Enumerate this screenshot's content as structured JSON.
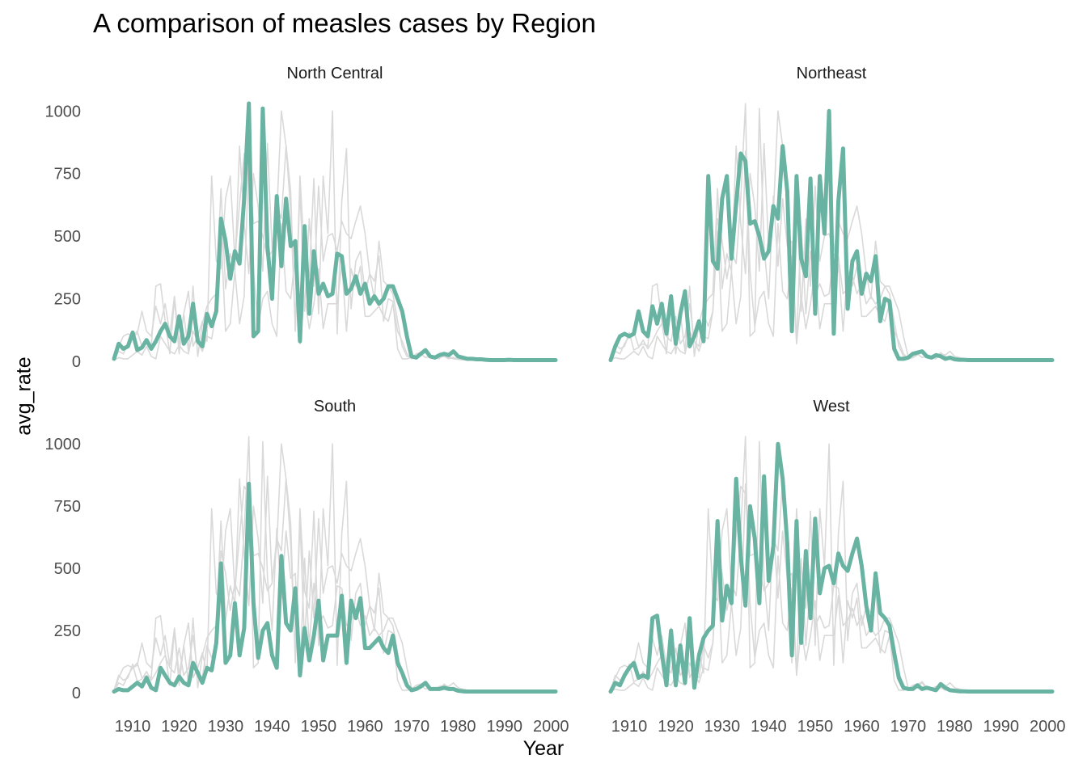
{
  "chart_data": {
    "type": "line",
    "title": "A comparison of measles cases by Region",
    "xlabel": "Year",
    "ylabel": "avg_rate",
    "xlim": [
      1906,
      2001
    ],
    "ylim": [
      0,
      1030
    ],
    "x_ticks": [
      1910,
      1920,
      1930,
      1940,
      1950,
      1960,
      1970,
      1980,
      1990,
      2000
    ],
    "y_ticks": [
      0,
      250,
      500,
      750,
      1000
    ],
    "grid": false,
    "legend": "none",
    "colors": {
      "highlight": "#69b3a2",
      "background": "#d9d9d9"
    },
    "x": [
      1906,
      1907,
      1908,
      1909,
      1910,
      1911,
      1912,
      1913,
      1914,
      1915,
      1916,
      1917,
      1918,
      1919,
      1920,
      1921,
      1922,
      1923,
      1924,
      1925,
      1926,
      1927,
      1928,
      1929,
      1930,
      1931,
      1932,
      1933,
      1934,
      1935,
      1936,
      1937,
      1938,
      1939,
      1940,
      1941,
      1942,
      1943,
      1944,
      1945,
      1946,
      1947,
      1948,
      1949,
      1950,
      1951,
      1952,
      1953,
      1954,
      1955,
      1956,
      1957,
      1958,
      1959,
      1960,
      1961,
      1962,
      1963,
      1964,
      1965,
      1966,
      1967,
      1968,
      1969,
      1970,
      1971,
      1972,
      1973,
      1974,
      1975,
      1976,
      1977,
      1978,
      1979,
      1980,
      1981,
      1982,
      1983,
      1984,
      1985,
      1986,
      1987,
      1988,
      1989,
      1990,
      1991,
      1992,
      1993,
      1994,
      1995,
      1996,
      1997,
      1998,
      1999,
      2000,
      2001
    ],
    "facets": [
      {
        "name": "North Central",
        "values": [
          10,
          70,
          50,
          60,
          115,
          45,
          55,
          85,
          50,
          80,
          120,
          150,
          100,
          80,
          180,
          70,
          100,
          230,
          80,
          60,
          190,
          140,
          200,
          570,
          480,
          330,
          440,
          390,
          650,
          1030,
          100,
          120,
          1010,
          460,
          250,
          660,
          380,
          650,
          460,
          480,
          80,
          540,
          190,
          440,
          270,
          310,
          260,
          270,
          430,
          420,
          270,
          290,
          340,
          270,
          310,
          230,
          260,
          230,
          250,
          300,
          300,
          250,
          200,
          100,
          20,
          15,
          30,
          45,
          20,
          15,
          25,
          30,
          25,
          40,
          20,
          15,
          10,
          10,
          8,
          8,
          6,
          5,
          5,
          5,
          5,
          6,
          5,
          5,
          5,
          5,
          5,
          5,
          5,
          5,
          5,
          5
        ]
      },
      {
        "name": "Northeast",
        "values": [
          5,
          60,
          100,
          110,
          100,
          110,
          200,
          120,
          100,
          220,
          150,
          230,
          110,
          260,
          70,
          190,
          280,
          60,
          100,
          160,
          80,
          740,
          400,
          370,
          650,
          740,
          410,
          630,
          830,
          800,
          550,
          560,
          500,
          410,
          440,
          620,
          570,
          860,
          680,
          120,
          740,
          410,
          340,
          730,
          190,
          740,
          510,
          1000,
          110,
          640,
          850,
          210,
          400,
          440,
          270,
          350,
          320,
          420,
          160,
          250,
          240,
          50,
          10,
          10,
          15,
          30,
          35,
          40,
          20,
          15,
          25,
          20,
          10,
          15,
          8,
          6,
          6,
          5,
          5,
          5,
          5,
          5,
          5,
          5,
          5,
          5,
          5,
          5,
          5,
          5,
          5,
          5,
          5,
          5,
          5,
          5
        ]
      },
      {
        "name": "South",
        "values": [
          5,
          15,
          10,
          10,
          25,
          40,
          25,
          60,
          20,
          10,
          100,
          70,
          40,
          30,
          65,
          40,
          30,
          120,
          80,
          40,
          100,
          90,
          200,
          520,
          120,
          150,
          360,
          150,
          260,
          840,
          360,
          140,
          250,
          280,
          150,
          100,
          550,
          280,
          250,
          420,
          70,
          260,
          130,
          230,
          370,
          130,
          230,
          230,
          230,
          390,
          120,
          370,
          300,
          380,
          180,
          180,
          200,
          220,
          180,
          160,
          230,
          120,
          80,
          30,
          10,
          15,
          25,
          40,
          15,
          15,
          15,
          20,
          15,
          15,
          8,
          6,
          5,
          5,
          5,
          5,
          5,
          5,
          5,
          5,
          5,
          5,
          5,
          5,
          5,
          5,
          5,
          5,
          5,
          5,
          5,
          5
        ]
      },
      {
        "name": "West",
        "values": [
          5,
          40,
          30,
          70,
          100,
          120,
          60,
          70,
          60,
          300,
          310,
          160,
          30,
          250,
          30,
          190,
          40,
          300,
          20,
          150,
          220,
          250,
          270,
          690,
          290,
          430,
          360,
          860,
          550,
          350,
          750,
          620,
          360,
          870,
          450,
          590,
          1000,
          860,
          600,
          150,
          690,
          200,
          570,
          300,
          700,
          400,
          500,
          510,
          440,
          560,
          510,
          490,
          560,
          620,
          510,
          350,
          250,
          480,
          320,
          300,
          270,
          160,
          60,
          20,
          15,
          15,
          30,
          15,
          20,
          15,
          10,
          35,
          20,
          10,
          8,
          6,
          6,
          5,
          5,
          5,
          5,
          5,
          5,
          5,
          5,
          5,
          5,
          5,
          5,
          5,
          5,
          5,
          5,
          5,
          5,
          5
        ]
      }
    ]
  }
}
